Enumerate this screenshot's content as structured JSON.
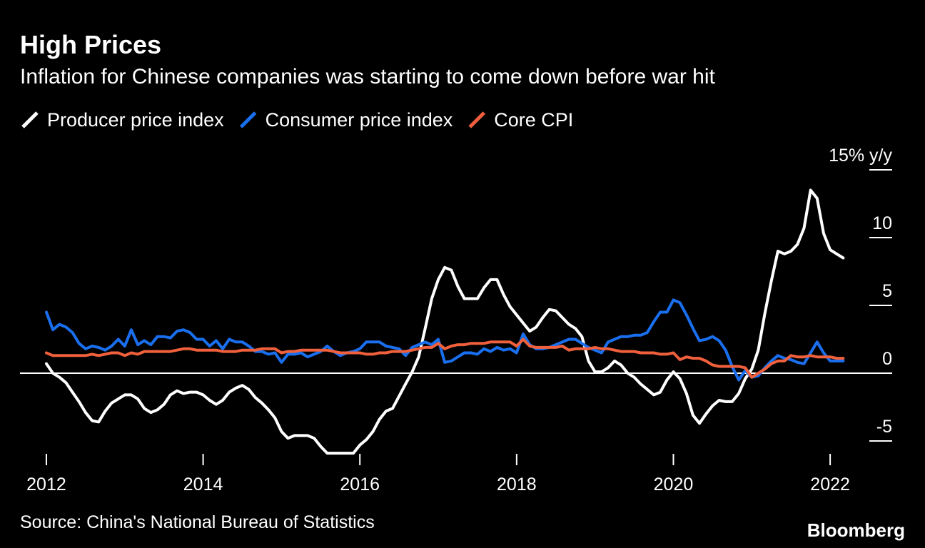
{
  "chart_data": {
    "type": "line",
    "title": "High Prices",
    "subtitle": "Inflation for Chinese companies was starting to come down before war hit",
    "source": "Source: China's National Bureau of Statistics",
    "credit": "Bloomberg",
    "x": [
      2012,
      2012.083,
      2012.167,
      2012.25,
      2012.333,
      2012.417,
      2012.5,
      2012.583,
      2012.667,
      2012.75,
      2012.833,
      2012.917,
      2013,
      2013.083,
      2013.167,
      2013.25,
      2013.333,
      2013.417,
      2013.5,
      2013.583,
      2013.667,
      2013.75,
      2013.833,
      2013.917,
      2014,
      2014.083,
      2014.167,
      2014.25,
      2014.333,
      2014.417,
      2014.5,
      2014.583,
      2014.667,
      2014.75,
      2014.833,
      2014.917,
      2015,
      2015.083,
      2015.167,
      2015.25,
      2015.333,
      2015.417,
      2015.5,
      2015.583,
      2015.667,
      2015.75,
      2015.833,
      2015.917,
      2016,
      2016.083,
      2016.167,
      2016.25,
      2016.333,
      2016.417,
      2016.5,
      2016.583,
      2016.667,
      2016.75,
      2016.833,
      2016.917,
      2017,
      2017.083,
      2017.167,
      2017.25,
      2017.333,
      2017.417,
      2017.5,
      2017.583,
      2017.667,
      2017.75,
      2017.833,
      2017.917,
      2018,
      2018.083,
      2018.167,
      2018.25,
      2018.333,
      2018.417,
      2018.5,
      2018.583,
      2018.667,
      2018.75,
      2018.833,
      2018.917,
      2019,
      2019.083,
      2019.167,
      2019.25,
      2019.333,
      2019.417,
      2019.5,
      2019.583,
      2019.667,
      2019.75,
      2019.833,
      2019.917,
      2020,
      2020.083,
      2020.167,
      2020.25,
      2020.333,
      2020.417,
      2020.5,
      2020.583,
      2020.667,
      2020.75,
      2020.833,
      2020.917,
      2021,
      2021.083,
      2021.167,
      2021.25,
      2021.333,
      2021.417,
      2021.5,
      2021.583,
      2021.667,
      2021.75,
      2021.833,
      2021.917,
      2022,
      2022.083,
      2022.167
    ],
    "series": [
      {
        "name": "Producer price index",
        "color": "#ffffff",
        "values": [
          0.7,
          0.0,
          -0.3,
          -0.7,
          -1.4,
          -2.1,
          -2.9,
          -3.5,
          -3.6,
          -2.8,
          -2.2,
          -1.9,
          -1.6,
          -1.6,
          -1.9,
          -2.6,
          -2.9,
          -2.7,
          -2.3,
          -1.6,
          -1.3,
          -1.5,
          -1.4,
          -1.4,
          -1.6,
          -2.0,
          -2.3,
          -2.0,
          -1.4,
          -1.1,
          -0.9,
          -1.2,
          -1.8,
          -2.2,
          -2.7,
          -3.3,
          -4.3,
          -4.8,
          -4.6,
          -4.6,
          -4.6,
          -4.8,
          -5.4,
          -5.9,
          -5.9,
          -5.9,
          -5.9,
          -5.9,
          -5.3,
          -4.9,
          -4.3,
          -3.4,
          -2.8,
          -2.6,
          -1.7,
          -0.8,
          0.1,
          1.2,
          3.3,
          5.5,
          6.9,
          7.8,
          7.6,
          6.4,
          5.5,
          5.5,
          5.5,
          6.3,
          6.9,
          6.9,
          5.8,
          4.9,
          4.3,
          3.7,
          3.1,
          3.4,
          4.1,
          4.7,
          4.6,
          4.1,
          3.6,
          3.3,
          2.7,
          0.9,
          0.1,
          0.1,
          0.4,
          0.9,
          0.6,
          0.0,
          -0.3,
          -0.8,
          -1.2,
          -1.6,
          -1.4,
          -0.5,
          0.1,
          -0.4,
          -1.5,
          -3.1,
          -3.7,
          -3.0,
          -2.4,
          -2.0,
          -2.1,
          -2.1,
          -1.5,
          -0.4,
          0.3,
          1.7,
          4.4,
          6.8,
          9.0,
          8.8,
          9.0,
          9.5,
          10.7,
          13.5,
          12.9,
          10.3,
          9.1,
          8.8,
          8.5
        ]
      },
      {
        "name": "Consumer price index",
        "color": "#1a6fef",
        "values": [
          4.5,
          3.2,
          3.6,
          3.4,
          3.0,
          2.2,
          1.8,
          2.0,
          1.9,
          1.7,
          2.0,
          2.5,
          2.0,
          3.2,
          2.1,
          2.4,
          2.1,
          2.7,
          2.7,
          2.6,
          3.1,
          3.2,
          3.0,
          2.5,
          2.5,
          2.0,
          2.4,
          1.8,
          2.5,
          2.3,
          2.3,
          2.0,
          1.6,
          1.6,
          1.4,
          1.5,
          0.8,
          1.4,
          1.4,
          1.5,
          1.2,
          1.4,
          1.6,
          2.0,
          1.6,
          1.3,
          1.5,
          1.6,
          1.8,
          2.3,
          2.3,
          2.3,
          2.0,
          1.9,
          1.8,
          1.3,
          1.9,
          2.1,
          2.3,
          2.1,
          2.5,
          0.8,
          0.9,
          1.2,
          1.5,
          1.5,
          1.4,
          1.8,
          1.6,
          1.9,
          1.7,
          1.8,
          1.5,
          2.9,
          2.1,
          1.8,
          1.8,
          1.9,
          2.1,
          2.3,
          2.5,
          2.5,
          2.2,
          1.9,
          1.7,
          1.5,
          2.3,
          2.5,
          2.7,
          2.7,
          2.8,
          2.8,
          3.0,
          3.8,
          4.5,
          4.5,
          5.4,
          5.2,
          4.3,
          3.3,
          2.4,
          2.5,
          2.7,
          2.4,
          1.7,
          0.5,
          -0.5,
          0.2,
          -0.3,
          -0.2,
          0.4,
          0.9,
          1.3,
          1.1,
          1.0,
          0.8,
          0.7,
          1.5,
          2.3,
          1.5,
          0.9,
          0.9,
          0.9
        ]
      },
      {
        "name": "Core CPI",
        "color": "#f0603c",
        "values": [
          1.5,
          1.3,
          1.3,
          1.3,
          1.3,
          1.3,
          1.3,
          1.4,
          1.3,
          1.4,
          1.5,
          1.5,
          1.3,
          1.5,
          1.4,
          1.6,
          1.6,
          1.6,
          1.6,
          1.6,
          1.7,
          1.8,
          1.8,
          1.7,
          1.7,
          1.7,
          1.7,
          1.6,
          1.6,
          1.6,
          1.7,
          1.7,
          1.7,
          1.8,
          1.8,
          1.8,
          1.5,
          1.6,
          1.6,
          1.7,
          1.7,
          1.7,
          1.7,
          1.7,
          1.6,
          1.5,
          1.5,
          1.5,
          1.5,
          1.4,
          1.4,
          1.5,
          1.5,
          1.6,
          1.6,
          1.6,
          1.7,
          1.8,
          1.9,
          1.9,
          2.2,
          1.8,
          2.0,
          2.1,
          2.1,
          2.2,
          2.2,
          2.2,
          2.3,
          2.3,
          2.3,
          2.3,
          2.0,
          2.5,
          2.0,
          1.9,
          1.9,
          1.9,
          1.9,
          2.0,
          1.7,
          1.8,
          1.8,
          1.8,
          1.9,
          1.8,
          1.8,
          1.7,
          1.6,
          1.6,
          1.6,
          1.5,
          1.5,
          1.5,
          1.4,
          1.4,
          1.5,
          1.0,
          1.2,
          1.1,
          1.1,
          0.9,
          0.6,
          0.5,
          0.5,
          0.5,
          0.5,
          0.4,
          -0.3,
          0.0,
          0.3,
          0.7,
          0.9,
          0.9,
          1.3,
          1.2,
          1.2,
          1.3,
          1.2,
          1.2,
          1.2,
          1.1,
          1.1
        ]
      }
    ],
    "xlim": [
      2011.75,
      2022.6
    ],
    "xticks": [
      2012,
      2014,
      2016,
      2018,
      2020,
      2022
    ],
    "ylim": [
      -7,
      16
    ],
    "yticks": [
      -5,
      0,
      5,
      10,
      {
        "value": 15,
        "label": "15% y/y"
      }
    ],
    "legend": "top-left"
  }
}
